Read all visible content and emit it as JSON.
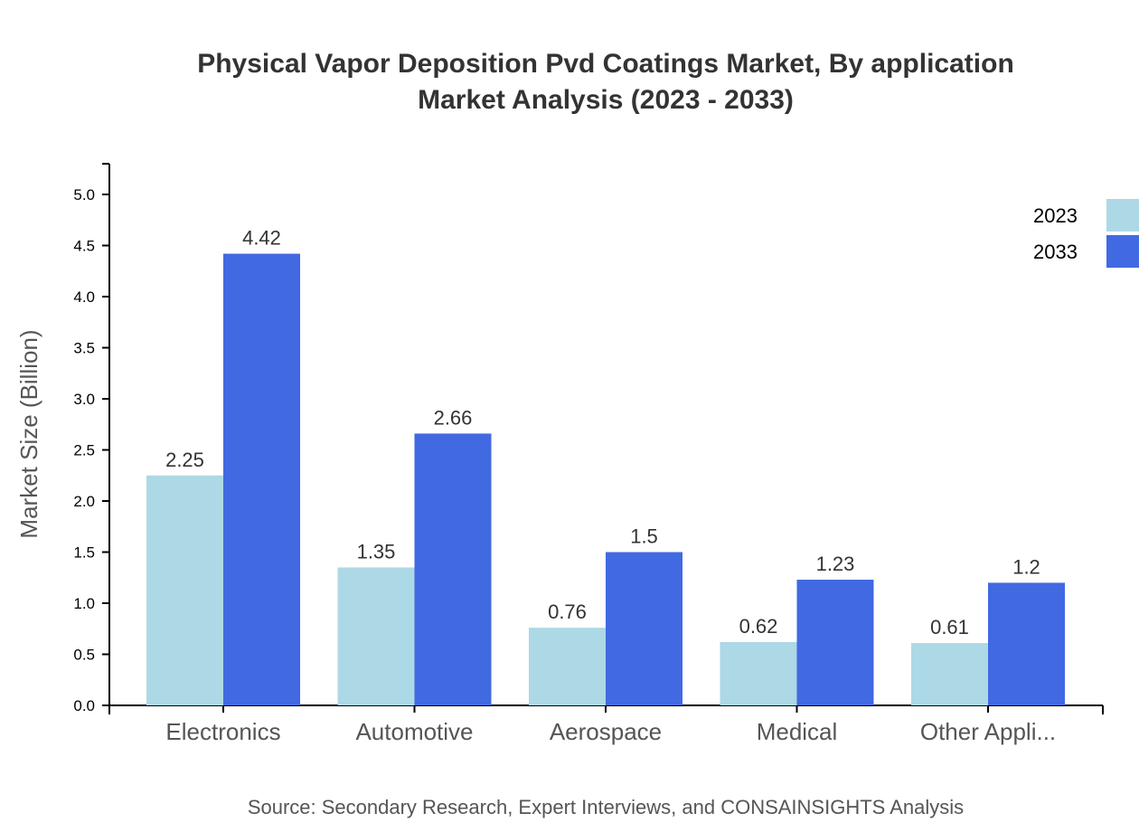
{
  "chart_data": {
    "type": "bar",
    "title": [
      "Physical Vapor Deposition Pvd Coatings Market, By application",
      "Market Analysis (2023 - 2033)"
    ],
    "ylabel": "Market Size (Billion)",
    "xlabel": "",
    "ylim": [
      0,
      5.3
    ],
    "yticks": [
      "0.0",
      "0.5",
      "1.0",
      "1.5",
      "2.0",
      "2.5",
      "3.0",
      "3.5",
      "4.0",
      "4.5",
      "5.0"
    ],
    "categories": [
      "Electronics",
      "Automotive",
      "Aerospace",
      "Medical",
      "Other Appli..."
    ],
    "series": [
      {
        "name": "2023",
        "color": "#add8e6",
        "values": [
          2.25,
          1.35,
          0.76,
          0.62,
          0.61
        ]
      },
      {
        "name": "2033",
        "color": "#4169e1",
        "values": [
          4.42,
          2.66,
          1.5,
          1.23,
          1.2
        ]
      }
    ],
    "legend_position": "top-right",
    "grid": false,
    "source": "Source: Secondary Research, Expert Interviews, and CONSAINSIGHTS Analysis"
  }
}
